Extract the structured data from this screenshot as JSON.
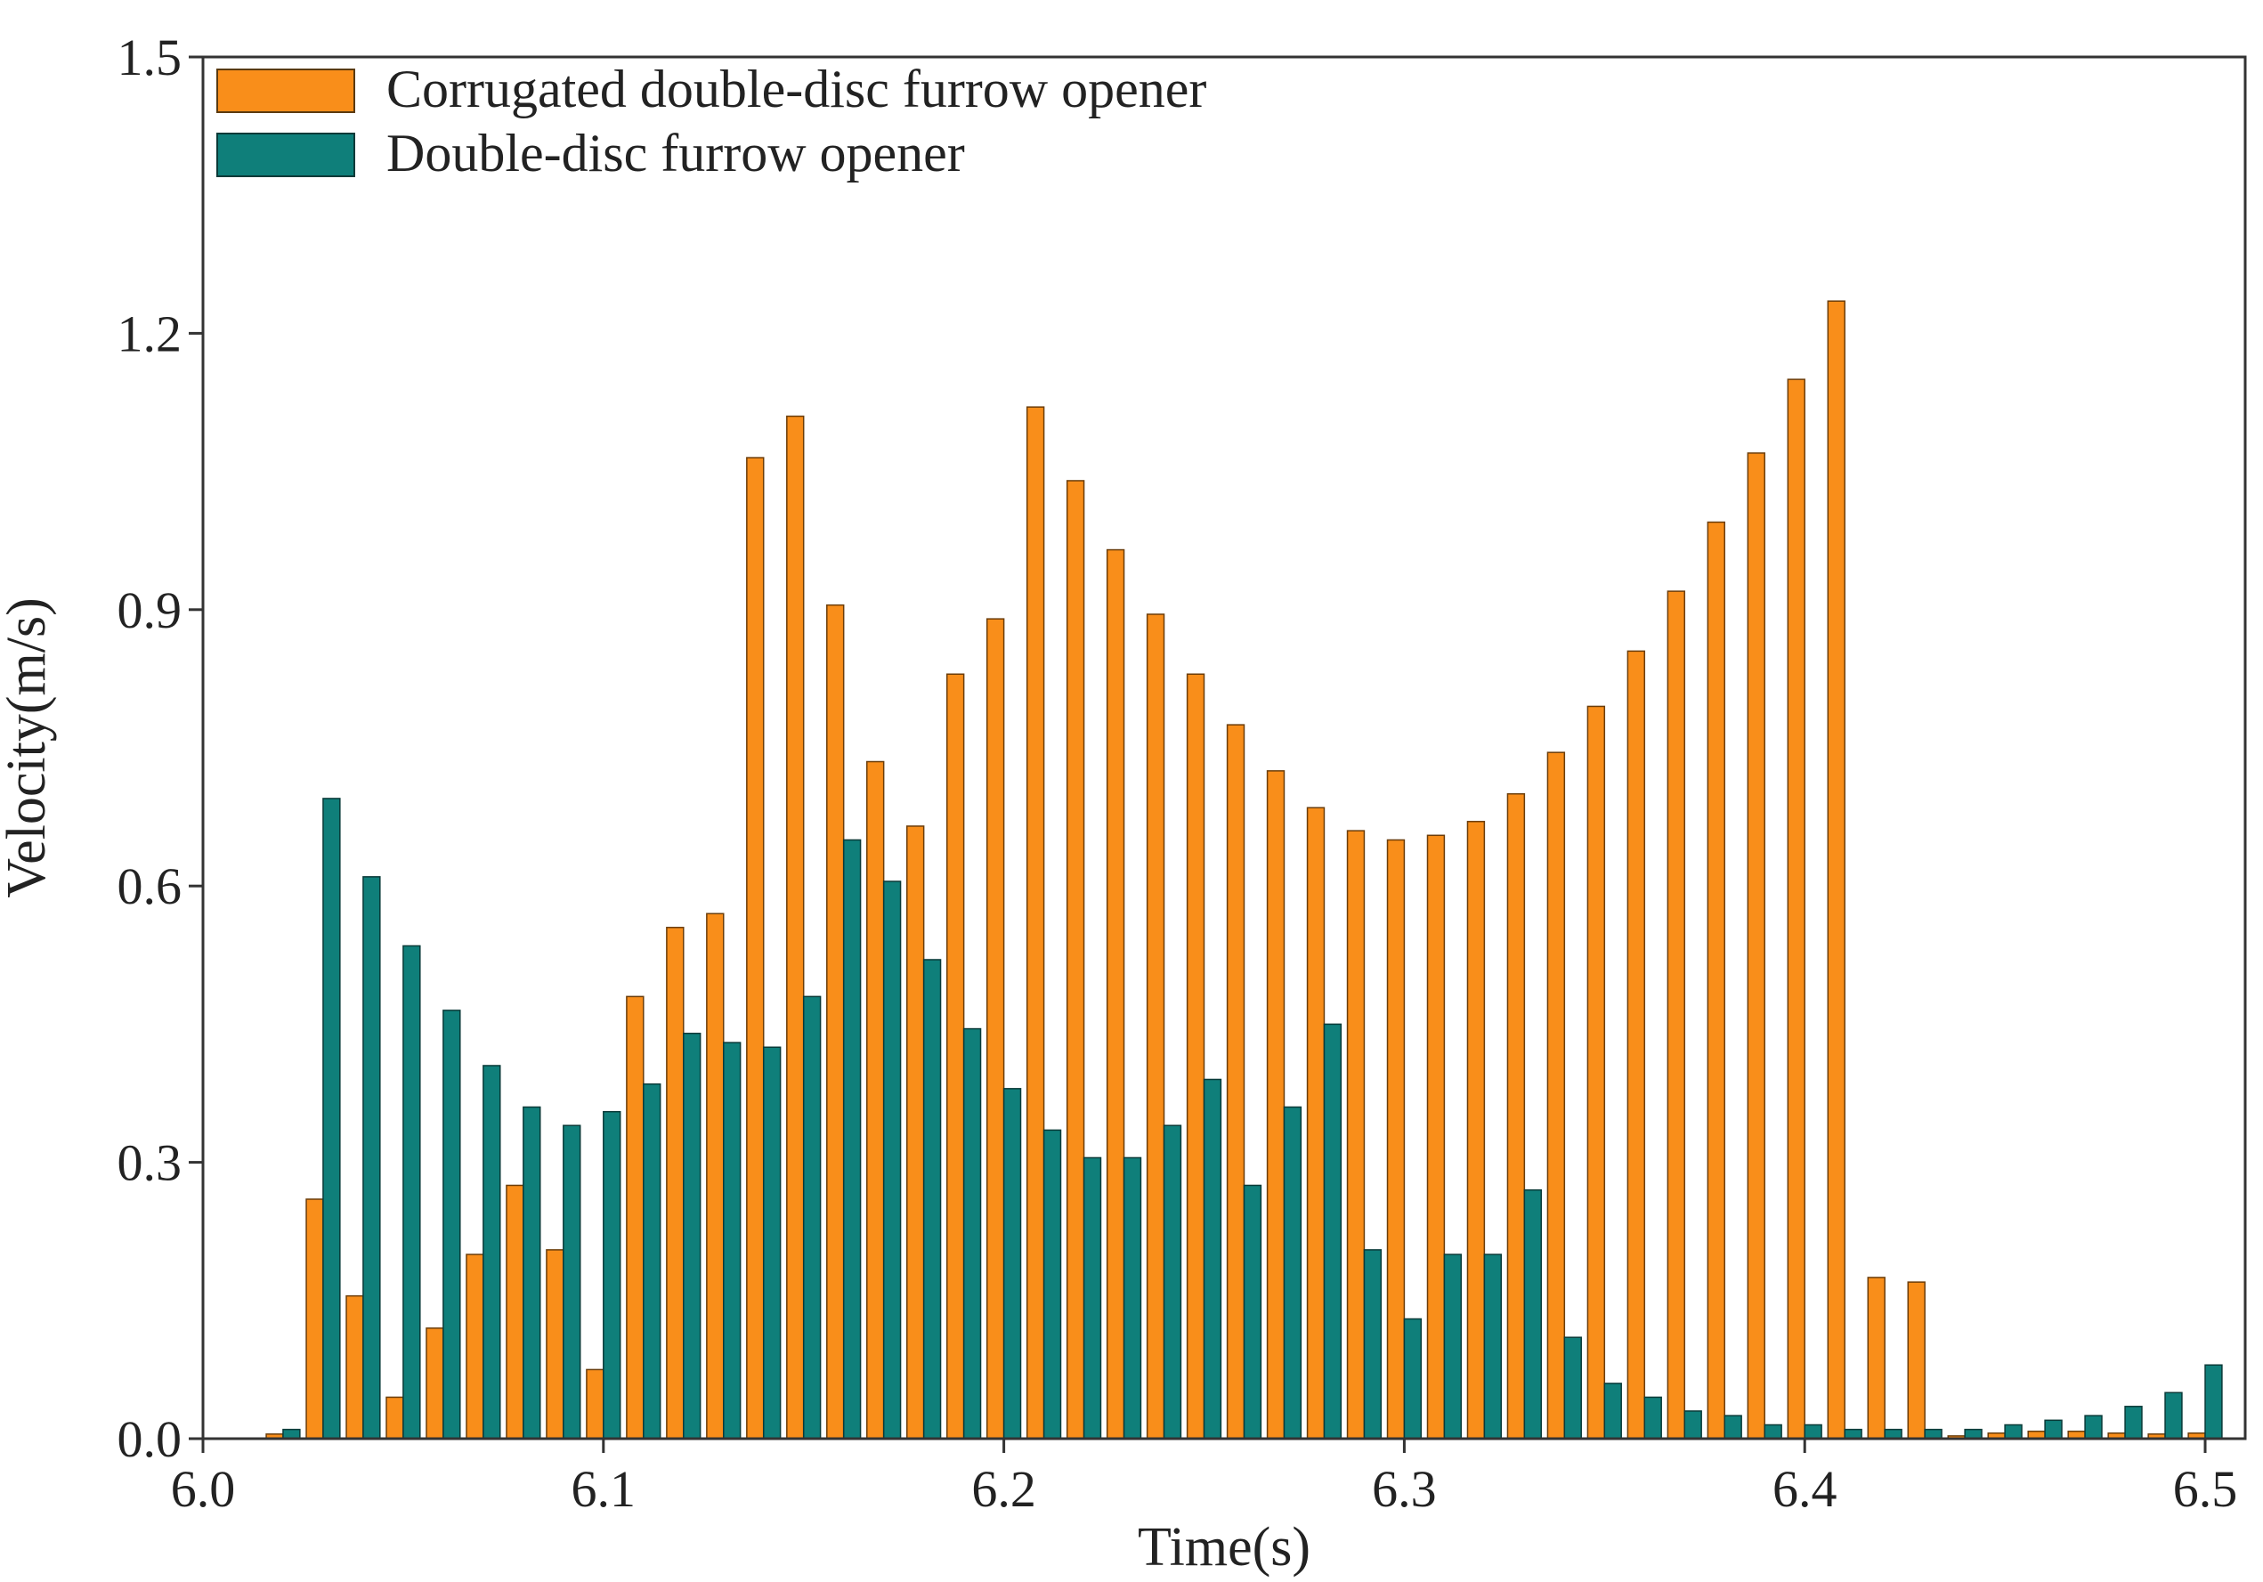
{
  "chart_data": {
    "type": "bar",
    "xlabel": "Time(s)",
    "ylabel": "Velocity(m/s)",
    "xlim": [
      6.0,
      6.51
    ],
    "ylim": [
      0,
      1.5
    ],
    "x_ticks": [
      "6.0",
      "6.1",
      "6.2",
      "6.3",
      "6.4",
      "6.5"
    ],
    "y_ticks": [
      "0.0",
      "0.3",
      "0.6",
      "0.9",
      "1.2",
      "1.5"
    ],
    "x_tick_values": [
      6.0,
      6.1,
      6.2,
      6.3,
      6.4,
      6.5
    ],
    "y_tick_values": [
      0.0,
      0.3,
      0.6,
      0.9,
      1.2,
      1.5
    ],
    "legend_position": "top-left",
    "x": [
      6.02,
      6.03,
      6.04,
      6.05,
      6.06,
      6.07,
      6.08,
      6.09,
      6.1,
      6.11,
      6.12,
      6.13,
      6.14,
      6.15,
      6.16,
      6.17,
      6.18,
      6.19,
      6.2,
      6.21,
      6.22,
      6.23,
      6.24,
      6.25,
      6.26,
      6.27,
      6.28,
      6.29,
      6.3,
      6.31,
      6.32,
      6.33,
      6.34,
      6.35,
      6.36,
      6.37,
      6.38,
      6.39,
      6.4,
      6.41,
      6.42,
      6.43,
      6.44,
      6.45,
      6.46,
      6.47,
      6.48,
      6.49,
      6.5
    ],
    "series": [
      {
        "name": "Corrugated double-disc furrow opener",
        "color": "#F98E1A",
        "values": [
          0.005,
          0.26,
          0.155,
          0.045,
          0.12,
          0.2,
          0.275,
          0.205,
          0.075,
          0.48,
          0.555,
          0.57,
          1.065,
          1.11,
          0.905,
          0.735,
          0.665,
          0.83,
          0.89,
          1.12,
          1.04,
          0.965,
          0.895,
          0.83,
          0.775,
          0.725,
          0.685,
          0.66,
          0.65,
          0.655,
          0.67,
          0.7,
          0.745,
          0.795,
          0.855,
          0.92,
          0.995,
          1.07,
          1.15,
          1.235,
          0.175,
          0.17,
          0.003,
          0.006,
          0.008,
          0.008,
          0.006,
          0.005,
          0.006
        ]
      },
      {
        "name": "Double-disc furrow opener",
        "color": "#0F7F7A",
        "values": [
          0.01,
          0.695,
          0.61,
          0.535,
          0.465,
          0.405,
          0.36,
          0.34,
          0.355,
          0.385,
          0.44,
          0.43,
          0.425,
          0.48,
          0.65,
          0.605,
          0.52,
          0.445,
          0.38,
          0.335,
          0.305,
          0.305,
          0.34,
          0.39,
          0.275,
          0.36,
          0.45,
          0.205,
          0.13,
          0.2,
          0.2,
          0.27,
          0.11,
          0.06,
          0.045,
          0.03,
          0.025,
          0.015,
          0.015,
          0.01,
          0.01,
          0.01,
          0.01,
          0.015,
          0.02,
          0.025,
          0.035,
          0.05,
          0.08
        ]
      }
    ]
  }
}
